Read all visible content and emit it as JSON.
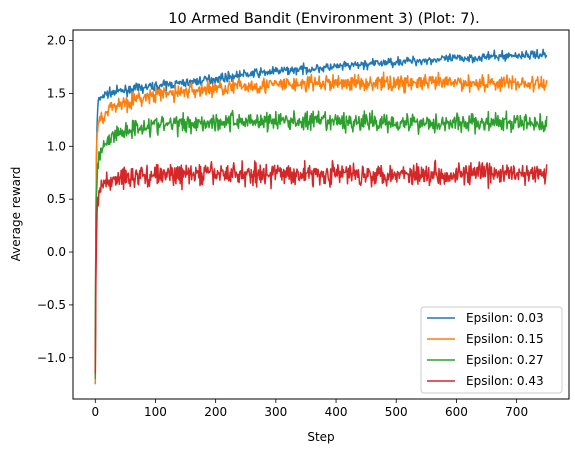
{
  "chart_data": {
    "type": "line",
    "title": "10 Armed Bandit (Environment 3) (Plot: 7).",
    "xlabel": "Step",
    "ylabel": "Average reward",
    "xlim": [
      -37,
      787
    ],
    "ylim": [
      -1.39,
      2.1
    ],
    "xticks": [
      0,
      100,
      200,
      300,
      400,
      500,
      600,
      700
    ],
    "yticks": [
      -1.0,
      -0.5,
      0.0,
      0.5,
      1.0,
      1.5,
      2.0
    ],
    "grid": false,
    "legend_position": "lower right",
    "x": [
      0,
      1,
      2,
      3,
      4,
      5,
      6,
      8,
      10,
      15,
      20,
      30,
      50,
      75,
      100,
      150,
      200,
      250,
      300,
      400,
      500,
      600,
      700,
      750
    ],
    "series": [
      {
        "name": "Epsilon: 0.03",
        "color": "#1f77b4",
        "values": [
          -0.93,
          0.2,
          0.9,
          1.2,
          1.35,
          1.42,
          1.43,
          1.45,
          1.47,
          1.48,
          1.5,
          1.51,
          1.53,
          1.55,
          1.57,
          1.6,
          1.64,
          1.68,
          1.71,
          1.75,
          1.8,
          1.83,
          1.86,
          1.87
        ],
        "noise": 0.03
      },
      {
        "name": "Epsilon: 0.15",
        "color": "#ff7f0e",
        "values": [
          -1.25,
          0.3,
          0.95,
          1.12,
          1.18,
          1.21,
          1.23,
          1.26,
          1.28,
          1.31,
          1.34,
          1.38,
          1.42,
          1.45,
          1.48,
          1.52,
          1.55,
          1.57,
          1.58,
          1.6,
          1.6,
          1.6,
          1.6,
          1.58
        ],
        "noise": 0.055
      },
      {
        "name": "Epsilon: 0.27",
        "color": "#2ca02c",
        "values": [
          -1.2,
          0.2,
          0.55,
          0.72,
          0.8,
          0.86,
          0.9,
          0.95,
          0.98,
          1.02,
          1.05,
          1.1,
          1.15,
          1.19,
          1.2,
          1.22,
          1.23,
          1.24,
          1.24,
          1.23,
          1.23,
          1.22,
          1.22,
          1.22
        ],
        "noise": 0.065
      },
      {
        "name": "Epsilon: 0.43",
        "color": "#d62728",
        "values": [
          -1.15,
          -0.3,
          0.1,
          0.35,
          0.45,
          0.5,
          0.54,
          0.58,
          0.6,
          0.64,
          0.66,
          0.69,
          0.71,
          0.72,
          0.73,
          0.73,
          0.74,
          0.74,
          0.74,
          0.74,
          0.74,
          0.74,
          0.74,
          0.73
        ],
        "noise": 0.075
      }
    ]
  }
}
